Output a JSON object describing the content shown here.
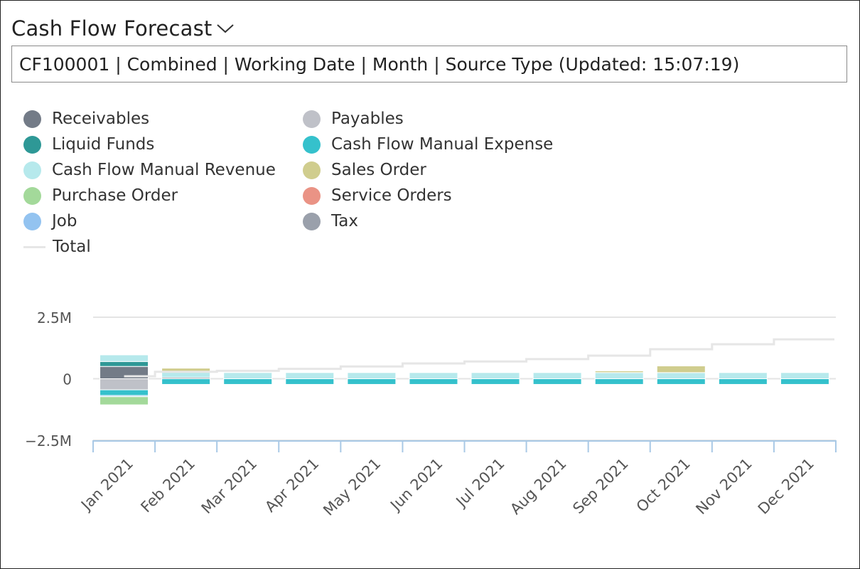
{
  "header": {
    "title": "Cash Flow Forecast",
    "info": "CF100001 | Combined | Working Date | Month | Source Type (Updated: 15:07:19)"
  },
  "legend": [
    {
      "label": "Receivables",
      "color": "#737b87",
      "kind": "dot"
    },
    {
      "label": "Payables",
      "color": "#bfc1c8",
      "kind": "dot"
    },
    {
      "label": "Liquid Funds",
      "color": "#2e9896",
      "kind": "dot"
    },
    {
      "label": "Cash Flow Manual Expense",
      "color": "#35c1cc",
      "kind": "dot"
    },
    {
      "label": "Cash Flow Manual Revenue",
      "color": "#b6e9ec",
      "kind": "dot"
    },
    {
      "label": "Sales Order",
      "color": "#d0cd8e",
      "kind": "dot"
    },
    {
      "label": "Purchase Order",
      "color": "#a3d99a",
      "kind": "dot"
    },
    {
      "label": "Service Orders",
      "color": "#ea9385",
      "kind": "dot"
    },
    {
      "label": "Job",
      "color": "#93c3f0",
      "kind": "dot"
    },
    {
      "label": "Tax",
      "color": "#9aa0ab",
      "kind": "dot"
    },
    {
      "label": "Total",
      "color": "#e6e6e6",
      "kind": "line"
    }
  ],
  "chart_data": {
    "type": "bar",
    "stacked": true,
    "categories": [
      "Jan 2021",
      "Feb 2021",
      "Mar 2021",
      "Apr 2021",
      "May 2021",
      "Jun 2021",
      "Jul 2021",
      "Aug 2021",
      "Sep 2021",
      "Oct 2021",
      "Nov 2021",
      "Dec 2021"
    ],
    "ylim": [
      -2500000,
      2500000
    ],
    "yticks": [
      {
        "value": 2500000,
        "label": "2.5M"
      },
      {
        "value": 0,
        "label": "0"
      },
      {
        "value": -2500000,
        "label": "−2.5M"
      }
    ],
    "grid": true,
    "legend_position": "top-left",
    "series": [
      {
        "name": "Receivables",
        "color": "#737b87",
        "values": [
          500000,
          50000,
          0,
          0,
          0,
          0,
          0,
          0,
          0,
          0,
          0,
          0
        ]
      },
      {
        "name": "Liquid Funds",
        "color": "#2e9896",
        "values": [
          200000,
          0,
          0,
          0,
          0,
          0,
          0,
          0,
          0,
          0,
          0,
          0
        ]
      },
      {
        "name": "Cash Flow Manual Revenue",
        "color": "#b6e9ec",
        "values": [
          270000,
          250000,
          250000,
          250000,
          250000,
          250000,
          250000,
          250000,
          250000,
          250000,
          250000,
          250000
        ]
      },
      {
        "name": "Sales Order",
        "color": "#d0cd8e",
        "values": [
          0,
          130000,
          0,
          0,
          0,
          0,
          0,
          0,
          70000,
          270000,
          0,
          0
        ]
      },
      {
        "name": "Payables",
        "color": "#bfc1c8",
        "values": [
          -450000,
          0,
          0,
          0,
          0,
          0,
          0,
          0,
          0,
          0,
          0,
          0
        ]
      },
      {
        "name": "Cash Flow Manual Expense",
        "color": "#35c1cc",
        "values": [
          -230000,
          -230000,
          -230000,
          -230000,
          -230000,
          -230000,
          -230000,
          -230000,
          -230000,
          -230000,
          -230000,
          -230000
        ]
      },
      {
        "name": "Job",
        "color": "#93c3f0",
        "values": [
          -50000,
          0,
          0,
          0,
          0,
          0,
          0,
          0,
          0,
          0,
          0,
          0
        ]
      },
      {
        "name": "Purchase Order",
        "color": "#a3d99a",
        "values": [
          -330000,
          0,
          0,
          0,
          0,
          0,
          0,
          0,
          0,
          0,
          0,
          0
        ]
      }
    ],
    "total_line": {
      "name": "Total",
      "color": "#e6e6e6",
      "values": [
        100000,
        280000,
        320000,
        400000,
        500000,
        620000,
        700000,
        800000,
        940000,
        1200000,
        1400000,
        1600000
      ]
    }
  }
}
